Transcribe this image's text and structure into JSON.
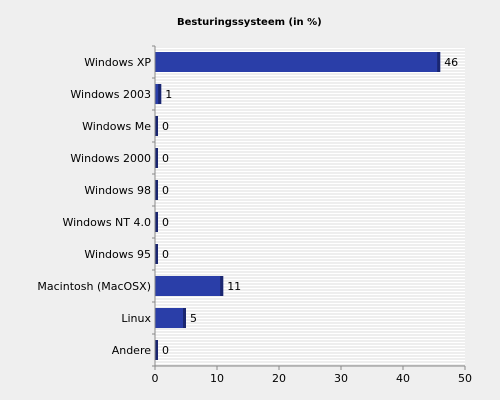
{
  "chart_data": {
    "type": "bar",
    "orientation": "horizontal",
    "title": "Besturingssysteem (in %)",
    "xlabel": "",
    "ylabel": "",
    "categories": [
      "Windows XP",
      "Windows 2003",
      "Windows Me",
      "Windows 2000",
      "Windows 98",
      "Windows NT 4.0",
      "Windows 95",
      "Macintosh (MacOSX)",
      "Linux",
      "Andere"
    ],
    "values": [
      46,
      1,
      0,
      0,
      0,
      0,
      0,
      11,
      5,
      0
    ],
    "xlim": [
      0,
      50
    ],
    "xticks": [
      0,
      10,
      20,
      30,
      40,
      50
    ],
    "bar_color": "#2a3ea8",
    "bar_shadow_color": "#1a2670",
    "grid": "horizontal stripes",
    "legend": "none"
  }
}
